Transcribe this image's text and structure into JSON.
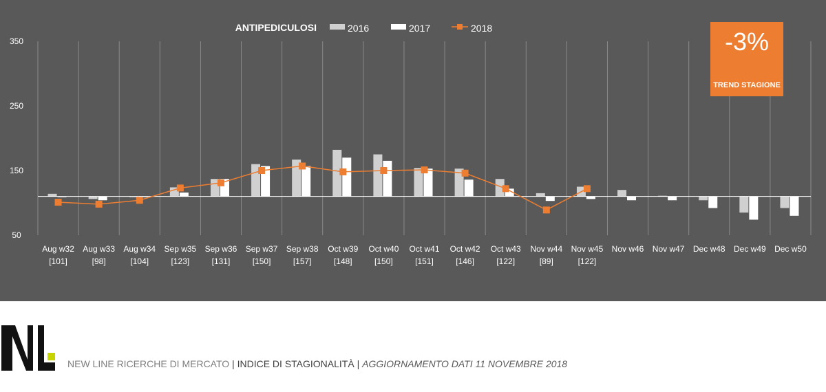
{
  "chart_data": {
    "type": "bar",
    "title": "ANTIPEDICULOSI",
    "categories": [
      "Aug w32",
      "Aug w33",
      "Aug w34",
      "Sep w35",
      "Sep w36",
      "Sep w37",
      "Sep w38",
      "Oct w39",
      "Oct w40",
      "Oct w41",
      "Oct w42",
      "Oct w43",
      "Nov w44",
      "Nov w45",
      "Nov w46",
      "Nov w47",
      "Dec w48",
      "Dec w49",
      "Dec w50"
    ],
    "category_sublabels": [
      "[101]",
      "[98]",
      "[104]",
      "[123]",
      "[131]",
      "[150]",
      "[157]",
      "[148]",
      "[150]",
      "[151]",
      "[146]",
      "[122]",
      "[89]",
      "[122]",
      "",
      "",
      "",
      "",
      ""
    ],
    "series": [
      {
        "name": "2016",
        "kind": "bar",
        "color": "#d0d0d0",
        "values": [
          114,
          106,
          109,
          124,
          137,
          160,
          167,
          182,
          175,
          154,
          153,
          137,
          115,
          125,
          120,
          111,
          104,
          85,
          92
        ]
      },
      {
        "name": "2017",
        "kind": "bar",
        "color": "#ffffff",
        "values": [
          109,
          104,
          110,
          116,
          137,
          157,
          157,
          170,
          165,
          153,
          136,
          122,
          103,
          106,
          104,
          104,
          92,
          74,
          80
        ]
      },
      {
        "name": "2018",
        "kind": "line",
        "color": "#ed7d31",
        "values": [
          101,
          98,
          104,
          123,
          131,
          150,
          157,
          148,
          150,
          151,
          146,
          122,
          89,
          122,
          null,
          null,
          null,
          null,
          null
        ]
      }
    ],
    "ylim": [
      50,
      350
    ],
    "yticks": [
      50,
      150,
      250,
      350
    ],
    "baseline": 110,
    "grid": true,
    "legend_position": "top-center"
  },
  "trend": {
    "value": "-3%",
    "label": "TREND STAGIONE",
    "color": "#ed7d31"
  },
  "footer": {
    "company": "NEW LINE RICERCHE DI MERCATO",
    "separator1": " | ",
    "index": "INDICE DI STAGIONALITÀ",
    "separator2": " | ",
    "update": "AGGIORNAMENTO DATI  11 NOVEMBRE 2018"
  },
  "colors": {
    "panel_bg": "#595959",
    "grid": "#8a8a8a",
    "accent": "#ed7d31",
    "logo_accent": "#c8d400"
  }
}
